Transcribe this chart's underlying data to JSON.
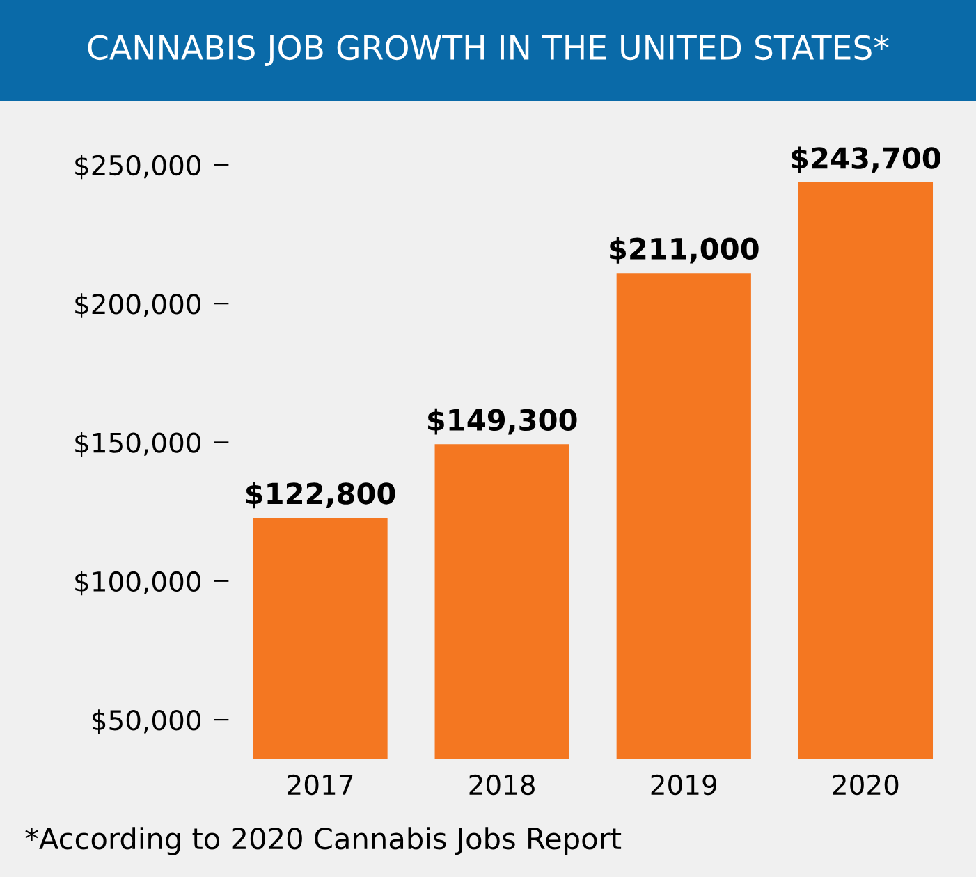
{
  "chart_data": {
    "type": "bar",
    "title": "CANNABIS JOB GROWTH IN THE UNITED STATES*",
    "categories": [
      "2017",
      "2018",
      "2019",
      "2020"
    ],
    "values": [
      122800,
      149300,
      211000,
      243700
    ],
    "value_labels": [
      "$122,800",
      "$149,300",
      "$211,000",
      "$243,700"
    ],
    "color": "#f47721",
    "ylim": [
      36000,
      262000
    ],
    "yticks": [
      {
        "value": 50000,
        "label": "$50,000"
      },
      {
        "value": 100000,
        "label": "$100,000"
      },
      {
        "value": 150000,
        "label": "$150,000"
      },
      {
        "value": 200000,
        "label": "$200,000"
      },
      {
        "value": 250000,
        "label": "$250,000"
      }
    ],
    "grid": false,
    "legend": false,
    "annotations": [
      "*According to 2020 Cannabis Jobs Report"
    ]
  }
}
